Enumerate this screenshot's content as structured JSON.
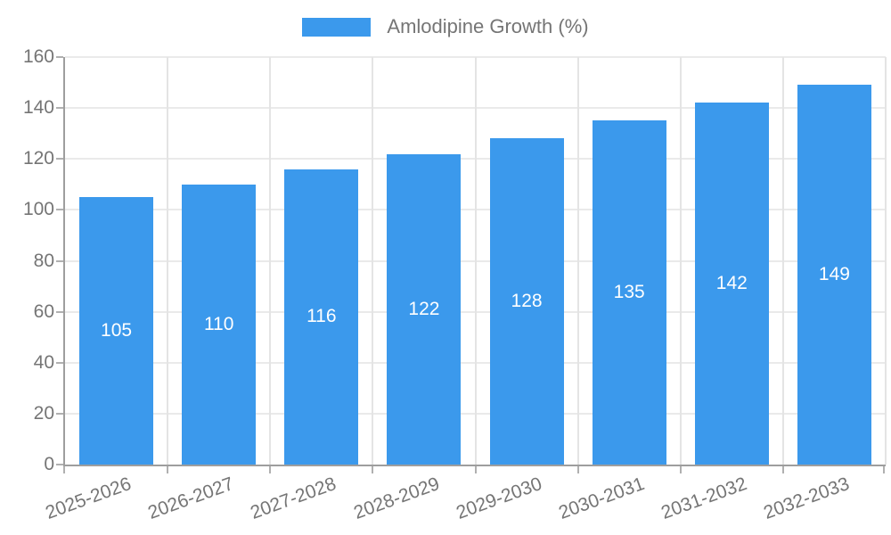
{
  "chart_data": {
    "type": "bar",
    "categories": [
      "2025-2026",
      "2026-2027",
      "2027-2028",
      "2028-2029",
      "2029-2030",
      "2030-2031",
      "2031-2032",
      "2032-2033"
    ],
    "series": [
      {
        "name": "Amlodipine Growth (%)",
        "color": "#3b99ec",
        "values": [
          105,
          110,
          116,
          122,
          128,
          135,
          142,
          149
        ]
      }
    ],
    "xlabel": "",
    "ylabel": "",
    "ylim": [
      0,
      160
    ],
    "yticks": [
      0,
      20,
      40,
      60,
      80,
      100,
      120,
      140,
      160
    ],
    "grid": true,
    "legend_position": "top",
    "x_tick_rotation_deg": -20,
    "value_labels": {
      "show": true,
      "color": "#ffffff",
      "position": "center"
    },
    "colors": {
      "bar": "#3b99ec",
      "axis_line": "#9e9e9e",
      "gridline": "#e4e4e4",
      "tick": "#b0b0b0",
      "label_text": "#757575",
      "value_text": "#ffffff",
      "background": "#ffffff"
    }
  }
}
